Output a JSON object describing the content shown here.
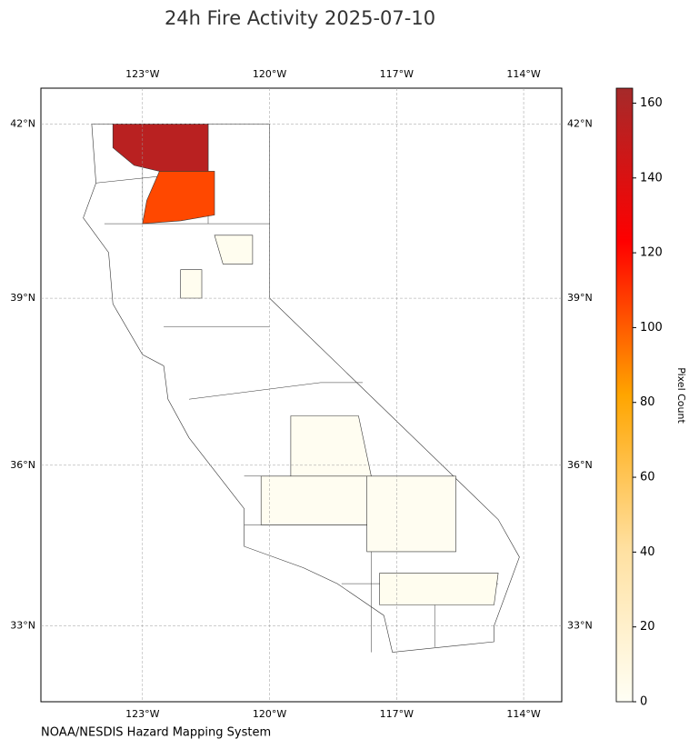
{
  "chart_data": {
    "type": "choropleth",
    "title": "24h Fire Activity 2025-07-10",
    "xlim": [
      -125.4,
      -113.1
    ],
    "ylim": [
      31.55,
      42.6
    ],
    "xticks": [
      {
        "value": -123,
        "label": "123°W"
      },
      {
        "value": -120,
        "label": "120°W"
      },
      {
        "value": -117,
        "label": "117°W"
      },
      {
        "value": -114,
        "label": "114°W"
      }
    ],
    "yticks": [
      {
        "value": 42,
        "label": "42°N"
      },
      {
        "value": 39,
        "label": "39°N"
      },
      {
        "value": 36,
        "label": "36°N"
      },
      {
        "value": 33,
        "label": "33°N"
      }
    ],
    "grid": true,
    "values": [
      155,
      105,
      3,
      3,
      2,
      2,
      2,
      3
    ],
    "colorbar": {
      "label": "Pixel Count",
      "clim": [
        0,
        164
      ],
      "ticks": [
        0,
        20,
        40,
        60,
        80,
        100,
        120,
        140,
        160
      ],
      "colors": [
        "#fffff5",
        "#ffe0a0",
        "#ffa500",
        "#ff0000",
        "#a52a2a"
      ]
    },
    "source": "NOAA/NESDIS Hazard Mapping System"
  }
}
